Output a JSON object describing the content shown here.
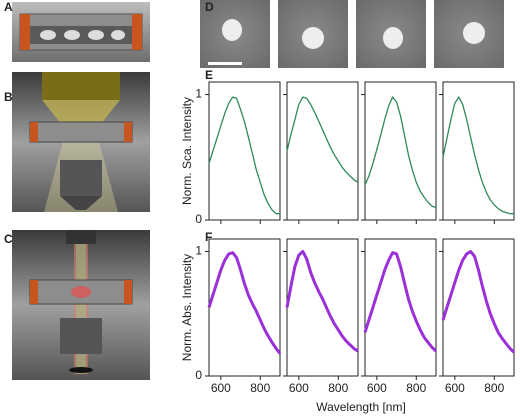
{
  "panel_labels": [
    "A",
    "B",
    "C",
    "D",
    "E",
    "F"
  ],
  "chart_data": [
    {
      "type": "line",
      "y_label": "Norm. Sca. Intensity",
      "color": "#2e8b57",
      "xlim": [
        540,
        900
      ],
      "ylim": [
        0,
        1.1
      ],
      "yticks": [
        0,
        1
      ],
      "x": [
        540,
        560,
        580,
        600,
        620,
        640,
        660,
        680,
        700,
        720,
        740,
        760,
        780,
        800,
        820,
        840,
        860,
        880,
        900
      ],
      "values": [
        0.45,
        0.55,
        0.65,
        0.75,
        0.85,
        0.93,
        0.98,
        0.97,
        0.88,
        0.78,
        0.66,
        0.53,
        0.4,
        0.3,
        0.2,
        0.13,
        0.08,
        0.05,
        0.05
      ]
    },
    {
      "type": "line",
      "color": "#2e8b57",
      "xlim": [
        540,
        900
      ],
      "ylim": [
        0,
        1.1
      ],
      "x": [
        540,
        560,
        580,
        600,
        620,
        640,
        660,
        680,
        700,
        720,
        740,
        760,
        780,
        800,
        820,
        840,
        860,
        880,
        900
      ],
      "values": [
        0.55,
        0.68,
        0.8,
        0.92,
        0.98,
        0.97,
        0.92,
        0.86,
        0.79,
        0.72,
        0.65,
        0.58,
        0.52,
        0.47,
        0.42,
        0.38,
        0.35,
        0.32,
        0.3
      ]
    },
    {
      "type": "line",
      "color": "#2e8b57",
      "xlim": [
        540,
        900
      ],
      "ylim": [
        0,
        1.1
      ],
      "x": [
        540,
        560,
        580,
        600,
        620,
        640,
        660,
        680,
        700,
        720,
        740,
        760,
        780,
        800,
        820,
        840,
        860,
        880,
        900
      ],
      "values": [
        0.28,
        0.35,
        0.45,
        0.56,
        0.68,
        0.8,
        0.91,
        0.98,
        0.94,
        0.83,
        0.68,
        0.52,
        0.4,
        0.3,
        0.23,
        0.18,
        0.14,
        0.11,
        0.1
      ]
    },
    {
      "type": "line",
      "color": "#2e8b57",
      "xlim": [
        540,
        900
      ],
      "ylim": [
        0,
        1.1
      ],
      "x": [
        540,
        560,
        580,
        600,
        620,
        640,
        660,
        680,
        700,
        720,
        740,
        760,
        780,
        800,
        820,
        840,
        860,
        880,
        900
      ],
      "values": [
        0.5,
        0.65,
        0.8,
        0.93,
        0.98,
        0.92,
        0.8,
        0.66,
        0.52,
        0.4,
        0.3,
        0.22,
        0.16,
        0.12,
        0.09,
        0.07,
        0.06,
        0.05,
        0.05
      ]
    },
    {
      "type": "line",
      "y_label": "Norm. Abs. Intensity",
      "x_label": "Wavelength [nm]",
      "color": "#9b30d9",
      "xlim": [
        540,
        900
      ],
      "ylim": [
        0,
        1.1
      ],
      "yticks": [
        0,
        1
      ],
      "xticks": [
        600,
        800
      ],
      "x": [
        540,
        560,
        580,
        600,
        620,
        640,
        660,
        680,
        700,
        720,
        740,
        760,
        780,
        800,
        820,
        840,
        860,
        880,
        900
      ],
      "values": [
        0.55,
        0.65,
        0.75,
        0.85,
        0.93,
        0.98,
        0.99,
        0.95,
        0.85,
        0.74,
        0.65,
        0.58,
        0.52,
        0.45,
        0.38,
        0.32,
        0.27,
        0.22,
        0.18
      ]
    },
    {
      "type": "line",
      "color": "#9b30d9",
      "xlim": [
        540,
        900
      ],
      "ylim": [
        0,
        1.1
      ],
      "xticks": [
        600,
        800
      ],
      "x": [
        540,
        560,
        580,
        600,
        620,
        640,
        660,
        680,
        700,
        720,
        740,
        760,
        780,
        800,
        820,
        840,
        860,
        880,
        900
      ],
      "values": [
        0.55,
        0.72,
        0.88,
        0.97,
        1.0,
        0.94,
        0.83,
        0.75,
        0.68,
        0.62,
        0.55,
        0.48,
        0.42,
        0.37,
        0.32,
        0.28,
        0.25,
        0.22,
        0.2
      ]
    },
    {
      "type": "line",
      "color": "#9b30d9",
      "xlim": [
        540,
        900
      ],
      "ylim": [
        0,
        1.1
      ],
      "xticks": [
        600,
        800
      ],
      "x": [
        540,
        560,
        580,
        600,
        620,
        640,
        660,
        680,
        700,
        720,
        740,
        760,
        780,
        800,
        820,
        840,
        860,
        880,
        900
      ],
      "values": [
        0.35,
        0.45,
        0.55,
        0.65,
        0.75,
        0.85,
        0.93,
        0.99,
        0.98,
        0.88,
        0.75,
        0.62,
        0.52,
        0.44,
        0.37,
        0.31,
        0.27,
        0.23,
        0.2
      ]
    },
    {
      "type": "line",
      "color": "#9b30d9",
      "xlim": [
        540,
        900
      ],
      "ylim": [
        0,
        1.1
      ],
      "xticks": [
        600,
        800
      ],
      "x": [
        540,
        560,
        580,
        600,
        620,
        640,
        660,
        680,
        700,
        720,
        740,
        760,
        780,
        800,
        820,
        840,
        860,
        880,
        900
      ],
      "values": [
        0.45,
        0.55,
        0.65,
        0.75,
        0.85,
        0.93,
        0.98,
        1.0,
        0.96,
        0.85,
        0.72,
        0.6,
        0.5,
        0.42,
        0.35,
        0.3,
        0.26,
        0.22,
        0.19
      ]
    }
  ]
}
